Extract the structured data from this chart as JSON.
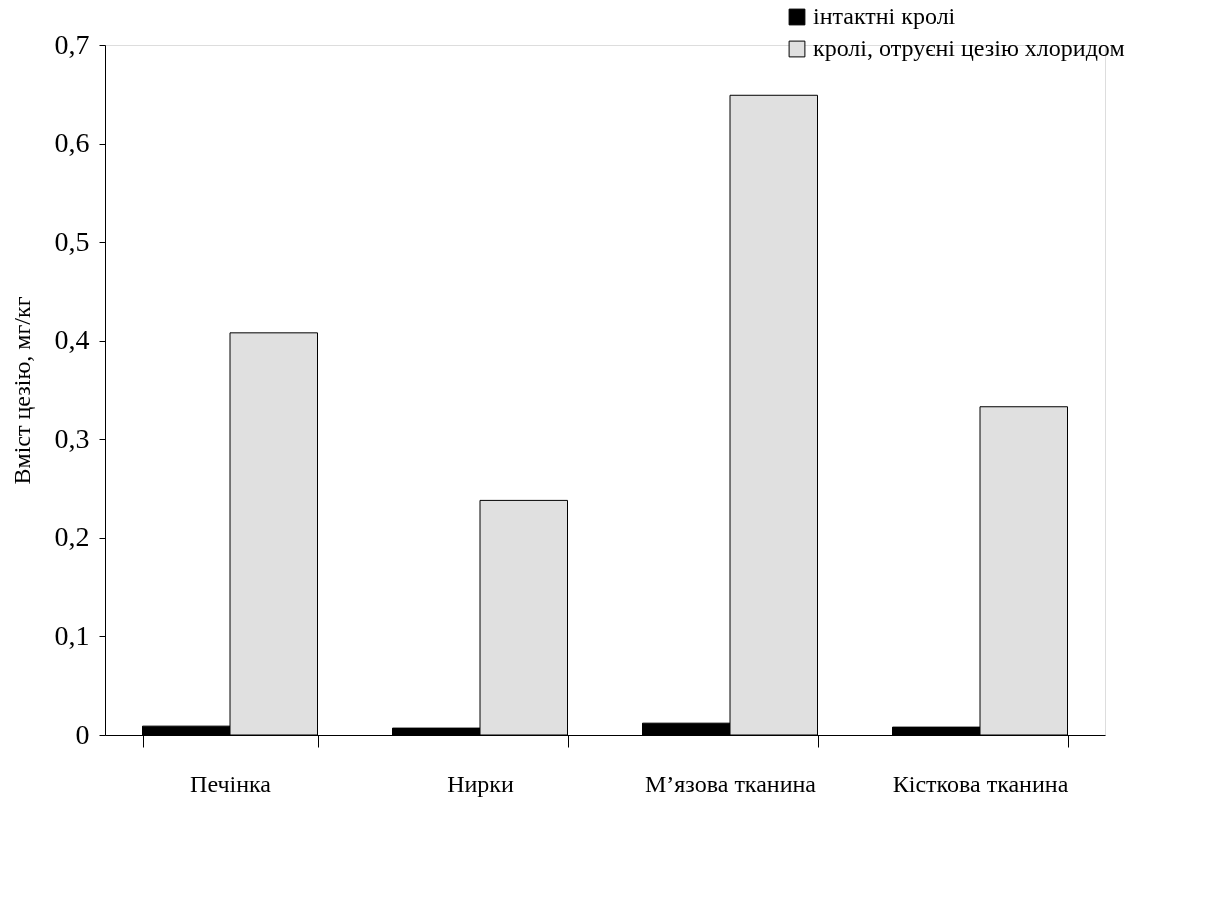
{
  "chart_data": {
    "type": "bar",
    "ylabel": "Вміст цезію, мг/кг",
    "categories": [
      "Печінка",
      "Нирки",
      "М’язова тканина",
      "Кісткова тканина"
    ],
    "series": [
      {
        "name": "інтактні кролі",
        "color": "#000000",
        "values": [
          0.009,
          0.007,
          0.012,
          0.008
        ]
      },
      {
        "name": "кролі, отруєні цезію хлоридом",
        "color": "#e0e0e0",
        "values": [
          0.408,
          0.238,
          0.649,
          0.333
        ]
      }
    ],
    "ylim": [
      0,
      0.7
    ],
    "yticks": [
      {
        "value": 0,
        "label": "0"
      },
      {
        "value": 0.1,
        "label": "0,1"
      },
      {
        "value": 0.2,
        "label": "0,2"
      },
      {
        "value": 0.3,
        "label": "0,3"
      },
      {
        "value": 0.4,
        "label": "0,4"
      },
      {
        "value": 0.5,
        "label": "0,5"
      },
      {
        "value": 0.6,
        "label": "0,6"
      },
      {
        "value": 0.7,
        "label": "0,7"
      }
    ],
    "grid": false,
    "legend": "top right"
  }
}
